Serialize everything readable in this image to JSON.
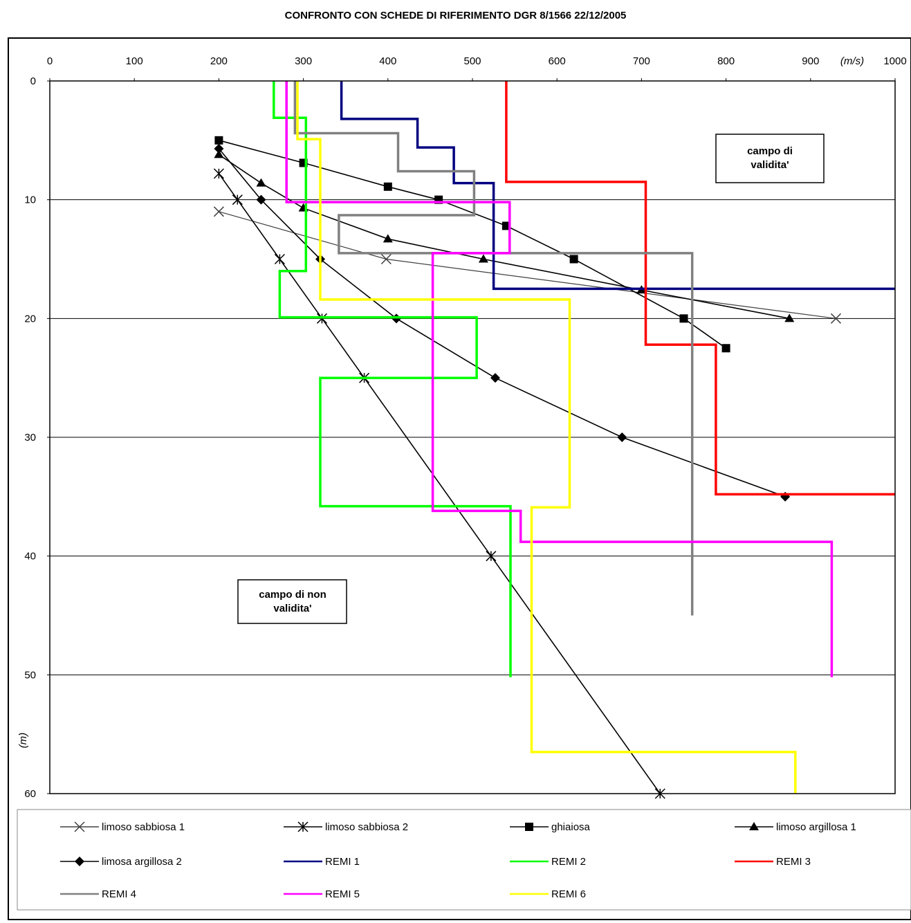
{
  "chart_data": {
    "type": "line",
    "title": "CONFRONTO CON SCHEDE DI RIFERIMENTO DGR 8/1566 22/12/2005",
    "x_unit_label": "(m/s)",
    "y_unit_label": "(m)",
    "xlim": [
      0,
      1000
    ],
    "ylim": [
      0,
      60
    ],
    "y_inverted": true,
    "x_axis_position": "top",
    "x_ticks": [
      "0",
      "100",
      "200",
      "300",
      "400",
      "500",
      "600",
      "700",
      "800",
      "900",
      "1000"
    ],
    "y_ticks": [
      "0",
      "10",
      "20",
      "30",
      "40",
      "50",
      "60"
    ],
    "grid": "horizontal",
    "legend_position": "bottom",
    "annotations": {
      "valid": "campo di validita'",
      "invalid": "campo di non validita'"
    },
    "series": [
      {
        "name": "limoso sabbiosa 1",
        "color": "#404040",
        "marker": "x",
        "width": 1.2,
        "points": [
          [
            200,
            11
          ],
          [
            398,
            15
          ],
          [
            930,
            20
          ]
        ]
      },
      {
        "name": "limoso sabbiosa 2",
        "color": "#000000",
        "marker": "star",
        "width": 1.6,
        "points": [
          [
            200,
            7.8
          ],
          [
            222,
            10
          ],
          [
            272,
            15
          ],
          [
            322,
            20
          ],
          [
            372,
            25
          ],
          [
            522,
            40
          ],
          [
            722,
            60
          ]
        ]
      },
      {
        "name": "ghiaiosa",
        "color": "#000000",
        "marker": "square",
        "width": 1.6,
        "points": [
          [
            200,
            5
          ],
          [
            300,
            6.9
          ],
          [
            400,
            8.9
          ],
          [
            460,
            10
          ],
          [
            540,
            12.2
          ],
          [
            620,
            15
          ],
          [
            750,
            20
          ],
          [
            800,
            22.5
          ]
        ]
      },
      {
        "name": "limoso argillosa 1",
        "color": "#000000",
        "marker": "triangle",
        "width": 1.6,
        "points": [
          [
            200,
            6.2
          ],
          [
            250,
            8.6
          ],
          [
            300,
            10.7
          ],
          [
            400,
            13.3
          ],
          [
            513,
            15
          ],
          [
            700,
            17.6
          ],
          [
            875,
            20
          ]
        ]
      },
      {
        "name": "limosa argillosa 2",
        "color": "#000000",
        "marker": "diamond",
        "width": 1.6,
        "points": [
          [
            200,
            5.7
          ],
          [
            250,
            10
          ],
          [
            320,
            15
          ],
          [
            410,
            20
          ],
          [
            527,
            25
          ],
          [
            677,
            30
          ],
          [
            870,
            35
          ]
        ]
      },
      {
        "name": "REMI 1",
        "color": "#000080",
        "marker": "none",
        "width": 3.5,
        "points": [
          [
            345,
            0
          ],
          [
            345,
            3.2
          ],
          [
            435,
            3.2
          ],
          [
            435,
            5.6
          ],
          [
            478,
            5.6
          ],
          [
            478,
            8.6
          ],
          [
            525,
            8.6
          ],
          [
            525,
            17.5
          ],
          [
            1000,
            17.5
          ]
        ]
      },
      {
        "name": "REMI 2",
        "color": "#00ff00",
        "marker": "none",
        "width": 3.5,
        "points": [
          [
            265,
            0
          ],
          [
            265,
            3.1
          ],
          [
            303,
            3.1
          ],
          [
            303,
            16
          ],
          [
            272,
            16
          ],
          [
            272,
            19.9
          ],
          [
            505,
            19.9
          ],
          [
            505,
            25
          ],
          [
            320,
            25
          ],
          [
            320,
            35.8
          ],
          [
            545,
            35.8
          ],
          [
            545,
            50.2
          ]
        ]
      },
      {
        "name": "REMI 3",
        "color": "#ff0000",
        "marker": "none",
        "width": 3.5,
        "points": [
          [
            540,
            0
          ],
          [
            540,
            8.5
          ],
          [
            705,
            8.5
          ],
          [
            705,
            22.2
          ],
          [
            788,
            22.2
          ],
          [
            788,
            34.8
          ],
          [
            1000,
            34.8
          ]
        ]
      },
      {
        "name": "REMI 4",
        "color": "#808080",
        "marker": "none",
        "width": 3.5,
        "points": [
          [
            290,
            0
          ],
          [
            290,
            4.4
          ],
          [
            412,
            4.4
          ],
          [
            412,
            7.6
          ],
          [
            502,
            7.6
          ],
          [
            502,
            11.3
          ],
          [
            342,
            11.3
          ],
          [
            342,
            14.5
          ],
          [
            760,
            14.5
          ],
          [
            760,
            45
          ]
        ]
      },
      {
        "name": "REMI 5",
        "color": "#ff00ff",
        "marker": "none",
        "width": 3.5,
        "points": [
          [
            280,
            0
          ],
          [
            280,
            10.2
          ],
          [
            544,
            10.2
          ],
          [
            544,
            14.5
          ],
          [
            453,
            14.5
          ],
          [
            453,
            36.2
          ],
          [
            557,
            36.2
          ],
          [
            557,
            38.8
          ],
          [
            925,
            38.8
          ],
          [
            925,
            50.2
          ]
        ]
      },
      {
        "name": "REMI 6",
        "color": "#ffff00",
        "marker": "none",
        "width": 3.5,
        "points": [
          [
            293,
            0
          ],
          [
            293,
            4.9
          ],
          [
            320,
            4.9
          ],
          [
            320,
            18.4
          ],
          [
            615,
            18.4
          ],
          [
            615,
            35.9
          ],
          [
            570,
            35.9
          ],
          [
            570,
            56.5
          ],
          [
            882,
            56.5
          ],
          [
            882,
            60
          ]
        ]
      }
    ]
  }
}
